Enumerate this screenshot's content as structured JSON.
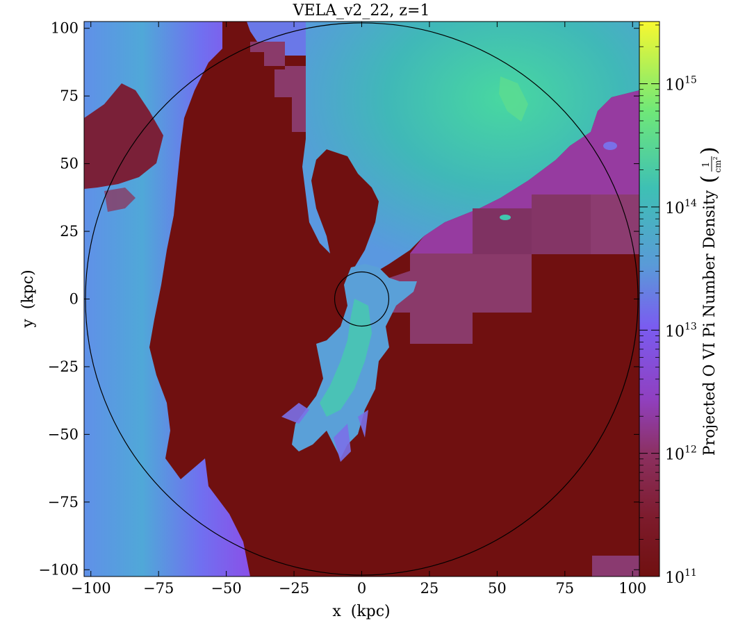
{
  "chart_data": {
    "type": "heatmap",
    "title": "VELA_v2_22, z=1",
    "xlabel": "x  (kpc)",
    "ylabel": "y  (kpc)",
    "xlim": [
      -102.5,
      102.5
    ],
    "ylim": [
      -102.5,
      102.5
    ],
    "xticks": [
      -100,
      -75,
      -50,
      -25,
      0,
      25,
      50,
      75,
      100
    ],
    "yticks": [
      -100,
      -75,
      -50,
      -25,
      0,
      25,
      50,
      75,
      100
    ],
    "xtick_labels": [
      "−100",
      "−75",
      "−50",
      "−25",
      "0",
      "25",
      "50",
      "75",
      "100"
    ],
    "ytick_labels": [
      "−100",
      "−75",
      "−50",
      "−25",
      "0",
      "25",
      "50",
      "75",
      "100"
    ],
    "colorbar": {
      "label": "Projected O VI Pi Number Density",
      "units_numerator": "1",
      "units_denominator": "cm",
      "units_exponent": "2",
      "scale": "log",
      "range": [
        100000000000.0,
        3200000000000000.0
      ],
      "ticks": [
        100000000000.0,
        1000000000000.0,
        10000000000000.0,
        100000000000000.0,
        1000000000000000.0
      ],
      "tick_bases": [
        "10",
        "10",
        "10",
        "10",
        "10"
      ],
      "tick_exponents": [
        "11",
        "12",
        "13",
        "14",
        "15"
      ],
      "colors": [
        "#701010",
        "#8a2a4a",
        "#9040c0",
        "#7a5cf0",
        "#5a9ad8",
        "#3ec0b4",
        "#70e878",
        "#f8f830"
      ]
    },
    "circles": [
      {
        "center": [
          0,
          0
        ],
        "radius": 102
      },
      {
        "center": [
          0,
          0
        ],
        "radius": 10
      }
    ],
    "background_level": 100000000000.0,
    "regions_log_density": [
      {
        "name": "left-wall-gas",
        "level": 13.0
      },
      {
        "name": "upper-right-filament",
        "level": 13.8
      },
      {
        "name": "central-outflow",
        "level": 13.4
      },
      {
        "name": "right-cgm-blocks",
        "level": 11.6
      }
    ]
  }
}
